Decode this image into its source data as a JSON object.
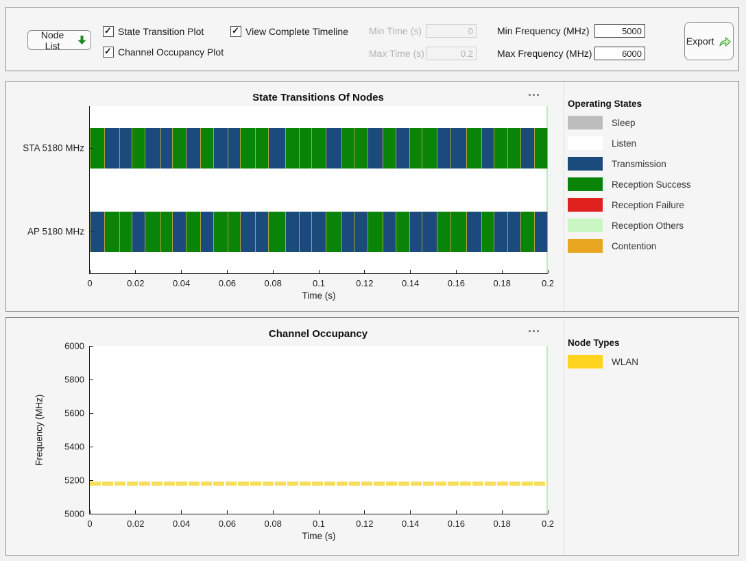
{
  "toolbar": {
    "node_list_label": "Node List",
    "checkboxes": [
      {
        "label": "State Transition Plot",
        "checked": true
      },
      {
        "label": "Channel Occupancy Plot",
        "checked": true
      },
      {
        "label": "View Complete Timeline",
        "checked": true
      }
    ],
    "fields": [
      {
        "label": "Min Time (s)",
        "value": "0",
        "disabled": true
      },
      {
        "label": "Max Time (s)",
        "value": "0.2",
        "disabled": true
      },
      {
        "label": "Min Frequency (MHz)",
        "value": "5000",
        "disabled": false
      },
      {
        "label": "Max Frequency (MHz)",
        "value": "6000",
        "disabled": false
      }
    ],
    "export_label": "Export"
  },
  "colors": {
    "sleep": "#BDBDBD",
    "listen": "#FFFFFF",
    "transmission": "#1B4A7D",
    "reception_success": "#098409",
    "reception_failure": "#DF201D",
    "reception_others": "#C9F6C2",
    "contention": "#E8A51F",
    "wlan": "#FFD41E",
    "band_fill": "#F8DD5A",
    "timeline_marker": "#BDEFB0"
  },
  "chart_data": [
    {
      "type": "timeline",
      "title": "State Transitions Of Nodes",
      "xlabel": "Time (s)",
      "xlim": [
        0,
        0.2
      ],
      "xticks": [
        0,
        0.02,
        0.04,
        0.06,
        0.08,
        0.1,
        0.12,
        0.14,
        0.16,
        0.18,
        0.2
      ],
      "xtick_labels": [
        "0",
        "0.02",
        "0.04",
        "0.06",
        "0.08",
        "0.1",
        "0.12",
        "0.14",
        "0.16",
        "0.18",
        "0.2"
      ],
      "state_colors": {
        "tx": "#1B4A7D",
        "rx": "#098409"
      },
      "segment_edge_color": "#B2A33C",
      "durations_ms": [
        6.2,
        6.6,
        5.4,
        5.8,
        6.8,
        5.2,
        6.0,
        6.4,
        5.6,
        6.2,
        5.4,
        6.6,
        5.8,
        7.4,
        6.0,
        5.4,
        6.2,
        7.0,
        5.6,
        6.0,
        6.4,
        5.6,
        6.2,
        5.4,
        6.6,
        5.8,
        7.2,
        6.4,
        5.6,
        6.0,
        5.4,
        6.2,
        5.6
      ],
      "rows": [
        {
          "label": "STA 5180 MHz",
          "states": [
            "rx",
            "tx",
            "tx",
            "rx",
            "tx",
            "tx",
            "rx",
            "tx",
            "rx",
            "tx",
            "tx",
            "rx",
            "rx",
            "tx",
            "rx",
            "rx",
            "rx",
            "tx",
            "rx",
            "rx",
            "tx",
            "rx",
            "tx",
            "rx",
            "rx",
            "tx",
            "tx",
            "rx",
            "tx",
            "rx",
            "rx",
            "tx",
            "rx"
          ]
        },
        {
          "label": "AP 5180 MHz",
          "states": [
            "tx",
            "rx",
            "rx",
            "tx",
            "rx",
            "rx",
            "tx",
            "rx",
            "tx",
            "rx",
            "rx",
            "tx",
            "tx",
            "rx",
            "tx",
            "tx",
            "tx",
            "rx",
            "tx",
            "tx",
            "rx",
            "tx",
            "rx",
            "tx",
            "tx",
            "rx",
            "rx",
            "tx",
            "rx",
            "tx",
            "tx",
            "rx",
            "tx"
          ]
        }
      ],
      "legend_title": "Operating States",
      "legend": [
        {
          "label": "Sleep",
          "color": "#BDBDBD"
        },
        {
          "label": "Listen",
          "color": "#FFFFFF"
        },
        {
          "label": "Transmission",
          "color": "#1B4A7D"
        },
        {
          "label": "Reception Success",
          "color": "#098409"
        },
        {
          "label": "Reception Failure",
          "color": "#DF201D"
        },
        {
          "label": "Reception Others",
          "color": "#C9F6C2"
        },
        {
          "label": "Contention",
          "color": "#E8A51F"
        }
      ]
    },
    {
      "type": "occupancy-timeline",
      "title": "Channel Occupancy",
      "xlabel": "Time (s)",
      "ylabel": "Frequency (MHz)",
      "xlim": [
        0,
        0.2
      ],
      "ylim": [
        5000,
        6000
      ],
      "xticks": [
        0,
        0.02,
        0.04,
        0.06,
        0.08,
        0.1,
        0.12,
        0.14,
        0.16,
        0.18,
        0.2
      ],
      "xtick_labels": [
        "0",
        "0.02",
        "0.04",
        "0.06",
        "0.08",
        "0.1",
        "0.12",
        "0.14",
        "0.16",
        "0.18",
        "0.2"
      ],
      "yticks": [
        5000,
        5200,
        5400,
        5600,
        5800,
        6000
      ],
      "ytick_labels": [
        "5000",
        "5200",
        "5400",
        "5600",
        "5800",
        "6000"
      ],
      "bands": [
        {
          "node_type": "WLAN",
          "freq_start": 5170,
          "freq_end": 5190,
          "t_start": 0,
          "t_end": 0.2,
          "color": "#F8DD5A"
        }
      ],
      "legend_title": "Node Types",
      "legend": [
        {
          "label": "WLAN",
          "color": "#FFD41E"
        }
      ]
    }
  ]
}
